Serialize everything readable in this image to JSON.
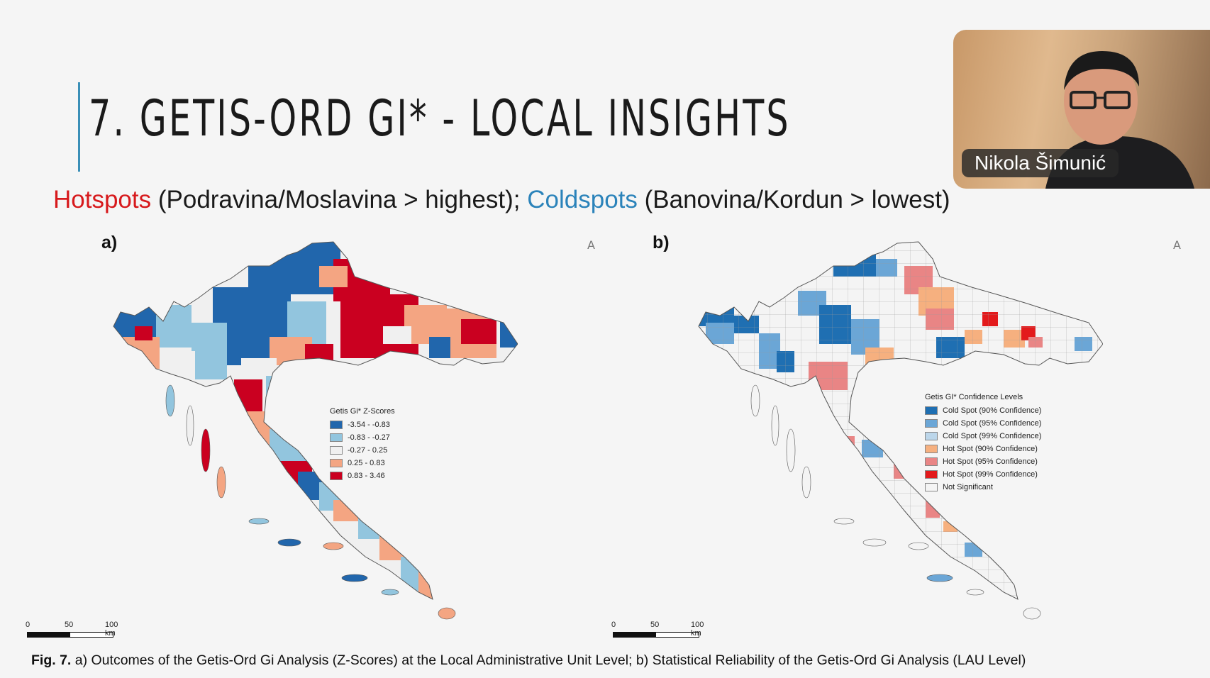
{
  "slide": {
    "title": "7. GETIS-ORD GI* - LOCAL INSIGHTS",
    "subtitle_hot": "Hotspots",
    "subtitle_mid": " (Podravina/Moslavina > highest); ",
    "subtitle_cold": "Coldspots",
    "subtitle_end": " (Banovina/Kordun > lowest)",
    "caption_bold": "Fig. 7.",
    "caption_text": " a) Outcomes of the Getis-Ord Gi Analysis (Z-Scores) at the Local Administrative Unit Level; b) Statistical Reliability of the Getis-Ord Gi Analysis (LAU Level)",
    "colors": {
      "accent": "#3a8fb7",
      "hot_text": "#d7191c",
      "cold_text": "#2b83ba"
    }
  },
  "map_a": {
    "label": "a)",
    "north_symbol": "A",
    "legend_title": "Getis Gi* Z-Scores",
    "legend": [
      {
        "label": "-3.54 - -0.83",
        "color": "#2166ac"
      },
      {
        "label": "-0.83 - -0.27",
        "color": "#92c5de"
      },
      {
        "label": "-0.27 - 0.25",
        "color": "#f0f0f0"
      },
      {
        "label": "0.25 - 0.83",
        "color": "#f4a582"
      },
      {
        "label": "0.83 - 3.46",
        "color": "#ca0020"
      }
    ],
    "scale": {
      "t0": "0",
      "t1": "50",
      "t2": "100 km"
    }
  },
  "map_b": {
    "label": "b)",
    "north_symbol": "A",
    "legend_title": "Getis GI* Confidence Levels",
    "legend": [
      {
        "label": "Cold Spot (90% Confidence)",
        "color": "#1f6fb2"
      },
      {
        "label": "Cold Spot (95% Confidence)",
        "color": "#6ba6d6"
      },
      {
        "label": "Cold Spot (99% Confidence)",
        "color": "#bcd6ea"
      },
      {
        "label": "Hot Spot (90% Confidence)",
        "color": "#f6b07f"
      },
      {
        "label": "Hot Spot (95% Confidence)",
        "color": "#e98585"
      },
      {
        "label": "Hot Spot (99% Confidence)",
        "color": "#e31a1c"
      },
      {
        "label": "Not Significant",
        "color": "#f4f4f4"
      }
    ],
    "scale": {
      "t0": "0",
      "t1": "50",
      "t2": "100 km"
    }
  },
  "webcam": {
    "participant_name": "Nikola Šimunić"
  }
}
